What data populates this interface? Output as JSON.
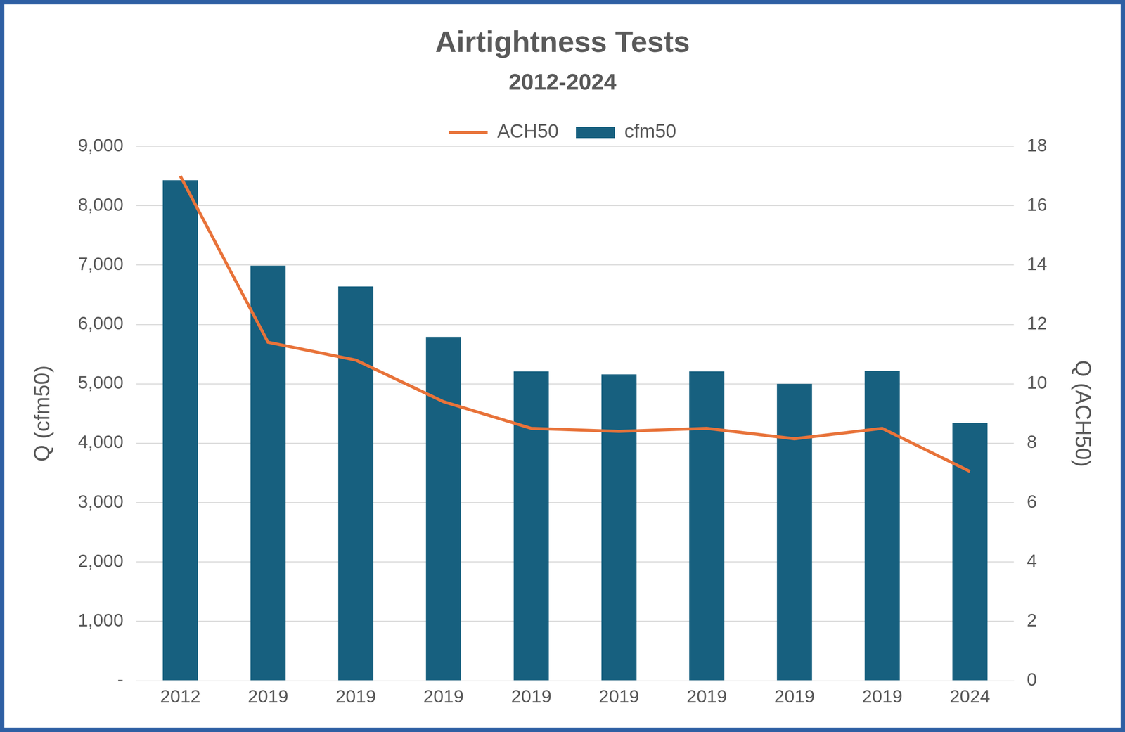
{
  "chart_data": {
    "type": "bar",
    "title": "Airtightness Tests",
    "subtitle": "2012-2024",
    "ylabel": "Q (cfm50)",
    "y2label": "Q (ACH50)",
    "categories": [
      "2012",
      "2019",
      "2019",
      "2019",
      "2019",
      "2019",
      "2019",
      "2019",
      "2019",
      "2024"
    ],
    "series": [
      {
        "name": "cfm50",
        "type": "bar",
        "color": "#17607f",
        "values": [
          8430,
          6990,
          6640,
          5790,
          5210,
          5160,
          5210,
          5000,
          5220,
          4340
        ]
      },
      {
        "name": "ACH50",
        "type": "line",
        "color": "#e8733a",
        "axis": "y2",
        "values": [
          17.0,
          11.4,
          10.8,
          9.4,
          8.5,
          8.4,
          8.5,
          8.15,
          8.5,
          7.05
        ]
      }
    ],
    "ylim": [
      0,
      9000
    ],
    "yticks": [
      {
        "value": 0,
        "label": "-"
      },
      {
        "value": 1000,
        "label": "1,000"
      },
      {
        "value": 2000,
        "label": "2,000"
      },
      {
        "value": 3000,
        "label": "3,000"
      },
      {
        "value": 4000,
        "label": "4,000"
      },
      {
        "value": 5000,
        "label": "5,000"
      },
      {
        "value": 6000,
        "label": "6,000"
      },
      {
        "value": 7000,
        "label": "7,000"
      },
      {
        "value": 8000,
        "label": "8,000"
      },
      {
        "value": 9000,
        "label": "9,000"
      }
    ],
    "y2lim": [
      0,
      18
    ],
    "y2ticks": [
      0,
      2,
      4,
      6,
      8,
      10,
      12,
      14,
      16,
      18
    ],
    "grid": true,
    "legend": "top"
  }
}
